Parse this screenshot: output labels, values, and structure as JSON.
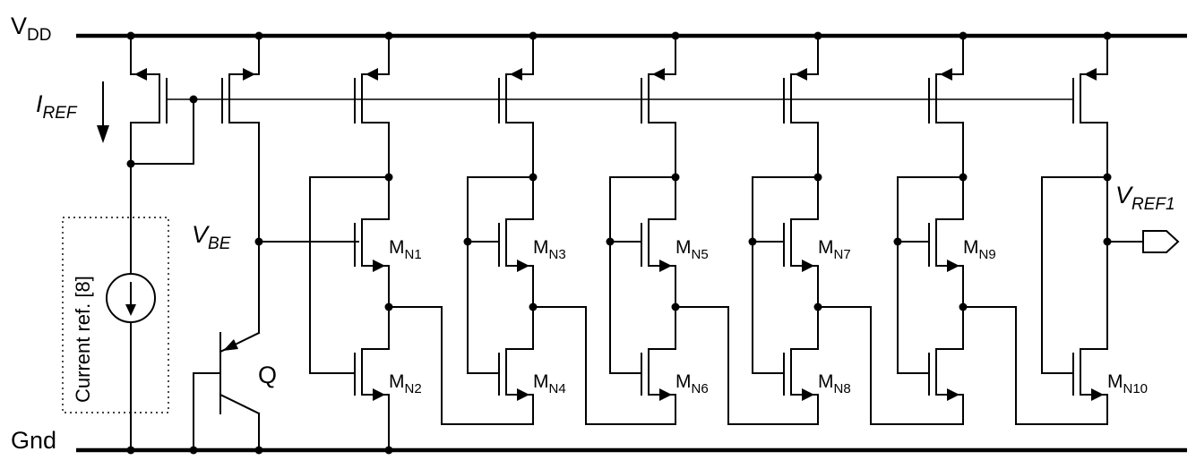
{
  "labels": {
    "vdd": "V",
    "vdd_sub": "DD",
    "gnd": "Gnd",
    "iref": "I",
    "iref_sub": "REF",
    "vbe": "V",
    "vbe_sub": "BE",
    "q": "Q",
    "vref1": "V",
    "vref1_sub": "REF1",
    "current_ref": "Current ref. [8]"
  },
  "devices": [
    {
      "name": "M",
      "sub": "N1"
    },
    {
      "name": "M",
      "sub": "N2"
    },
    {
      "name": "M",
      "sub": "N3"
    },
    {
      "name": "M",
      "sub": "N4"
    },
    {
      "name": "M",
      "sub": "N5"
    },
    {
      "name": "M",
      "sub": "N6"
    },
    {
      "name": "M",
      "sub": "N7"
    },
    {
      "name": "M",
      "sub": "N8"
    },
    {
      "name": "M",
      "sub": "N9"
    },
    {
      "name": "M",
      "sub": "N10"
    }
  ]
}
